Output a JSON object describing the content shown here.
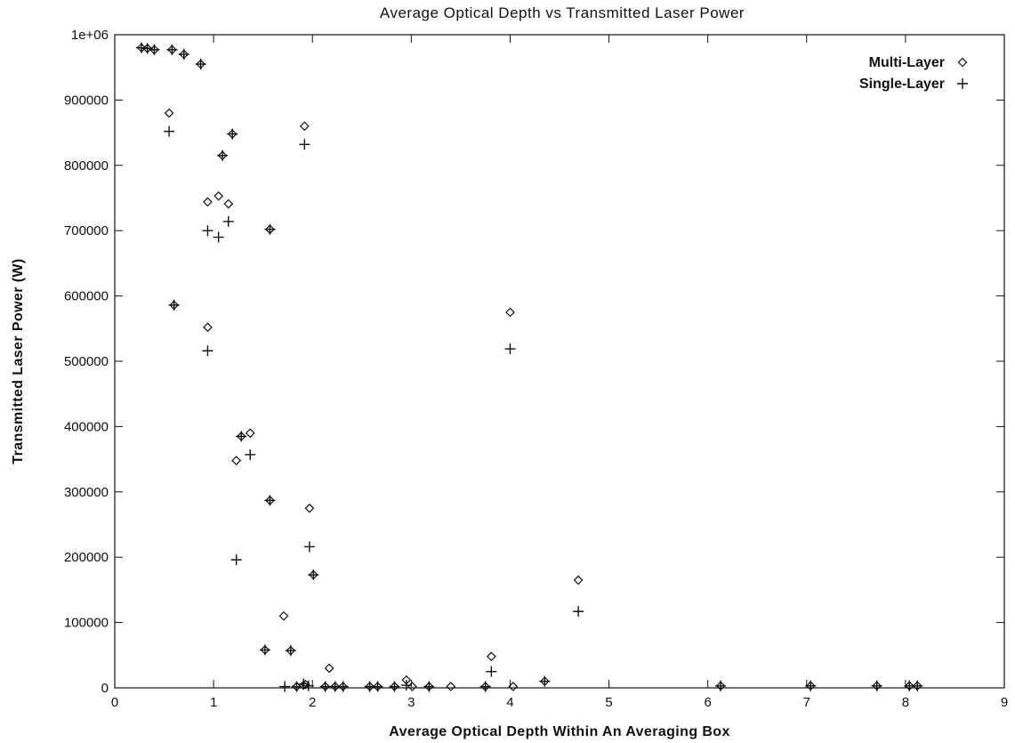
{
  "chart_data": {
    "type": "scatter",
    "title": "Average Optical Depth vs Transmitted Laser Power",
    "xlabel": "Average Optical Depth Within An Averaging Box",
    "ylabel": "Transmitted Laser Power (W)",
    "xlim": [
      0,
      9
    ],
    "ylim": [
      0,
      1000000
    ],
    "x_ticks": [
      "0",
      "1",
      "2",
      "3",
      "4",
      "5",
      "6",
      "7",
      "8",
      "9"
    ],
    "y_ticks": [
      "0",
      "100000",
      "200000",
      "300000",
      "400000",
      "500000",
      "600000",
      "700000",
      "800000",
      "900000",
      "1e+06"
    ],
    "legend_position": "top-right",
    "grid": false,
    "series": [
      {
        "name": "Multi-Layer",
        "marker": "diamond",
        "points": [
          [
            0.27,
            980000
          ],
          [
            0.33,
            979000
          ],
          [
            0.4,
            977000
          ],
          [
            0.58,
            977000
          ],
          [
            0.7,
            970000
          ],
          [
            0.87,
            955000
          ],
          [
            0.55,
            880000
          ],
          [
            1.09,
            815000
          ],
          [
            1.19,
            848000
          ],
          [
            1.92,
            860000
          ],
          [
            0.94,
            744000
          ],
          [
            1.05,
            753000
          ],
          [
            1.15,
            741000
          ],
          [
            1.57,
            702000
          ],
          [
            0.6,
            586000
          ],
          [
            0.94,
            552000
          ],
          [
            4.0,
            575000
          ],
          [
            1.37,
            390000
          ],
          [
            1.23,
            348000
          ],
          [
            1.28,
            385000
          ],
          [
            1.57,
            287000
          ],
          [
            1.97,
            275000
          ],
          [
            2.01,
            173000
          ],
          [
            1.71,
            110000
          ],
          [
            4.69,
            165000
          ],
          [
            1.52,
            58000
          ],
          [
            1.78,
            57000
          ],
          [
            3.81,
            48000
          ],
          [
            2.17,
            30000
          ],
          [
            2.95,
            12000
          ],
          [
            4.35,
            10000
          ],
          [
            1.84,
            2000
          ],
          [
            1.91,
            4000
          ],
          [
            1.93,
            5000
          ],
          [
            2.13,
            2000
          ],
          [
            2.23,
            2000
          ],
          [
            2.31,
            2000
          ],
          [
            2.58,
            2000
          ],
          [
            2.66,
            2000
          ],
          [
            2.83,
            2000
          ],
          [
            3.01,
            2000
          ],
          [
            3.18,
            2000
          ],
          [
            3.4,
            2000
          ],
          [
            3.75,
            2000
          ],
          [
            4.03,
            2000
          ],
          [
            6.13,
            3000
          ],
          [
            7.04,
            3000
          ],
          [
            7.71,
            3000
          ],
          [
            8.04,
            3000
          ],
          [
            8.12,
            3000
          ]
        ]
      },
      {
        "name": "Single-Layer",
        "marker": "plus",
        "points": [
          [
            0.27,
            980000
          ],
          [
            0.33,
            979000
          ],
          [
            0.4,
            977000
          ],
          [
            0.58,
            977000
          ],
          [
            0.7,
            970000
          ],
          [
            0.87,
            955000
          ],
          [
            0.55,
            852000
          ],
          [
            1.09,
            815000
          ],
          [
            1.19,
            848000
          ],
          [
            1.92,
            832000
          ],
          [
            0.94,
            700000
          ],
          [
            1.05,
            690000
          ],
          [
            1.15,
            714000
          ],
          [
            1.57,
            702000
          ],
          [
            0.6,
            586000
          ],
          [
            0.94,
            516000
          ],
          [
            4.0,
            519000
          ],
          [
            1.37,
            357000
          ],
          [
            1.28,
            385000
          ],
          [
            1.23,
            196000
          ],
          [
            1.57,
            287000
          ],
          [
            1.97,
            216000
          ],
          [
            2.01,
            173000
          ],
          [
            4.69,
            117000
          ],
          [
            1.52,
            58000
          ],
          [
            1.78,
            57000
          ],
          [
            3.81,
            25000
          ],
          [
            1.72,
            2000
          ],
          [
            1.84,
            2000
          ],
          [
            1.91,
            6000
          ],
          [
            1.96,
            3000
          ],
          [
            2.13,
            2000
          ],
          [
            2.23,
            2000
          ],
          [
            2.31,
            2000
          ],
          [
            2.58,
            2000
          ],
          [
            2.66,
            2000
          ],
          [
            2.83,
            2000
          ],
          [
            2.95,
            4000
          ],
          [
            3.18,
            2000
          ],
          [
            3.75,
            2000
          ],
          [
            4.35,
            10000
          ],
          [
            6.13,
            3000
          ],
          [
            7.04,
            3000
          ],
          [
            7.71,
            3000
          ],
          [
            8.04,
            3000
          ],
          [
            8.12,
            3000
          ]
        ]
      }
    ]
  }
}
